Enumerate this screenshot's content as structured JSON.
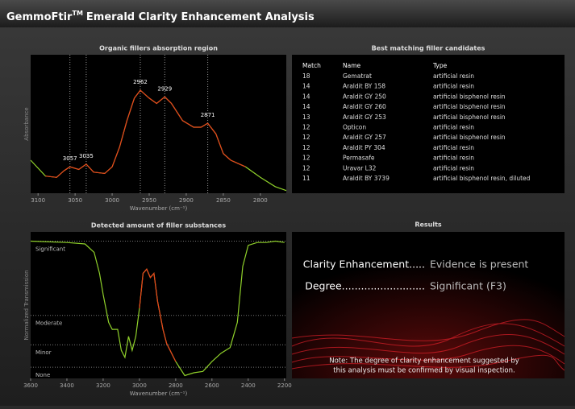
{
  "header": {
    "title": "GemmoFtir",
    "mark": "TM",
    "subtitle": "Emerald Clarity Enhancement Analysis"
  },
  "chart_data": [
    {
      "type": "line",
      "title": "Organic fillers absorption region",
      "x_label": "Wavenumber (cm⁻¹)",
      "y_label": "Absorbance",
      "x": [
        3110,
        3090,
        3075,
        3065,
        3057,
        3045,
        3035,
        3025,
        3010,
        3000,
        2990,
        2980,
        2970,
        2962,
        2950,
        2940,
        2929,
        2920,
        2905,
        2890,
        2880,
        2871,
        2860,
        2850,
        2840,
        2820,
        2800,
        2780,
        2765
      ],
      "series": [
        {
          "color": "#8fd02a",
          "values": [
            0.25,
            0.13,
            0.12,
            0.17,
            0.2,
            0.18,
            0.22,
            0.16,
            0.15,
            0.2,
            0.35,
            0.55,
            0.72,
            0.78,
            0.72,
            0.68,
            0.73,
            0.68,
            0.55,
            0.5,
            0.5,
            0.53,
            0.45,
            0.3,
            0.25,
            0.2,
            0.12,
            0.05,
            0.02
          ]
        },
        {
          "color": "#e8401c",
          "values": [
            null,
            0.13,
            0.12,
            0.17,
            0.2,
            0.18,
            0.22,
            0.16,
            0.15,
            0.2,
            0.35,
            0.55,
            0.72,
            0.78,
            0.72,
            0.68,
            0.73,
            0.68,
            0.55,
            0.5,
            0.5,
            0.53,
            0.45,
            0.3,
            0.25,
            0.2,
            null,
            null,
            null
          ]
        }
      ],
      "peaks": [
        3057,
        3035,
        2962,
        2929,
        2871
      ],
      "xlim": [
        3110,
        2765
      ],
      "ylim": [
        0,
        1
      ],
      "xticks": [
        3100,
        3050,
        3000,
        2950,
        2900,
        2850,
        2800
      ]
    },
    {
      "type": "line",
      "title": "Detected amount of filler substances",
      "x_label": "Wavenumber (cm⁻¹)",
      "y_label": "Normalized Transmission",
      "x": [
        3600,
        3400,
        3300,
        3250,
        3220,
        3200,
        3170,
        3150,
        3120,
        3100,
        3080,
        3060,
        3040,
        3020,
        3000,
        2980,
        2960,
        2940,
        2920,
        2900,
        2870,
        2850,
        2800,
        2750,
        2700,
        2650,
        2600,
        2550,
        2500,
        2460,
        2430,
        2400,
        2350,
        2300,
        2250,
        2200
      ],
      "series": [
        {
          "color": "#8fd02a",
          "values": [
            0.98,
            0.97,
            0.96,
            0.9,
            0.75,
            0.6,
            0.4,
            0.35,
            0.35,
            0.2,
            0.15,
            0.3,
            0.2,
            0.3,
            0.5,
            0.75,
            0.78,
            0.72,
            0.75,
            0.55,
            0.35,
            0.25,
            0.12,
            0.02,
            0.04,
            0.05,
            0.12,
            0.18,
            0.22,
            0.4,
            0.8,
            0.95,
            0.97,
            0.97,
            0.98,
            0.97
          ]
        },
        {
          "color": "#e8401c",
          "values": [
            null,
            null,
            null,
            null,
            null,
            null,
            null,
            null,
            null,
            null,
            null,
            null,
            null,
            null,
            0.5,
            0.75,
            0.78,
            0.72,
            0.75,
            0.55,
            0.35,
            0.25,
            0.12,
            null,
            null,
            null,
            null,
            null,
            null,
            null,
            null,
            null,
            null,
            null,
            null,
            null
          ]
        }
      ],
      "xlim": [
        3600,
        2190
      ],
      "ylim": [
        0,
        1
      ],
      "xticks": [
        3600,
        3400,
        3200,
        3000,
        2800,
        2600,
        2400,
        2200
      ],
      "yticks": [
        {
          "value": 0.98,
          "label": "Significant"
        },
        {
          "value": 0.45,
          "label": "Moderate"
        },
        {
          "value": 0.24,
          "label": "Minor"
        },
        {
          "value": 0.08,
          "label": "None"
        }
      ]
    }
  ],
  "table": {
    "title": "Best matching filler candidates",
    "columns": [
      "Match",
      "Name",
      "Type"
    ],
    "rows": [
      [
        "18",
        "Gematrat",
        "artificial resin"
      ],
      [
        "14",
        "Araldit BY 158",
        "artificial resin"
      ],
      [
        "14",
        "Araldit GY 250",
        "artificial bisphenol resin"
      ],
      [
        "14",
        "Araldit GY 260",
        "artificial bisphenol resin"
      ],
      [
        "13",
        "Araldit GY 253",
        "artificial bisphenol resin"
      ],
      [
        "12",
        "Opticon",
        "artificial resin"
      ],
      [
        "12",
        "Araldit GY 257",
        "artificial bisphenol resin"
      ],
      [
        "12",
        "Araldit PY 304",
        "artificial resin"
      ],
      [
        "12",
        "Permasafe",
        "artificial resin"
      ],
      [
        "12",
        "Uravar L32",
        "artificial resin"
      ],
      [
        "11",
        "Araldit BY 3739",
        "artificial bisphenol resin, diluted"
      ]
    ]
  },
  "results": {
    "title": "Results",
    "rows": [
      [
        "Clarity Enhancement.....",
        "Evidence is present"
      ],
      [
        "Degree..........................",
        "Significant (F3)"
      ]
    ],
    "note": [
      "Note: The degree of clarity enhancement suggested by",
      "this analysis must be confirmed by visual inspection."
    ]
  }
}
